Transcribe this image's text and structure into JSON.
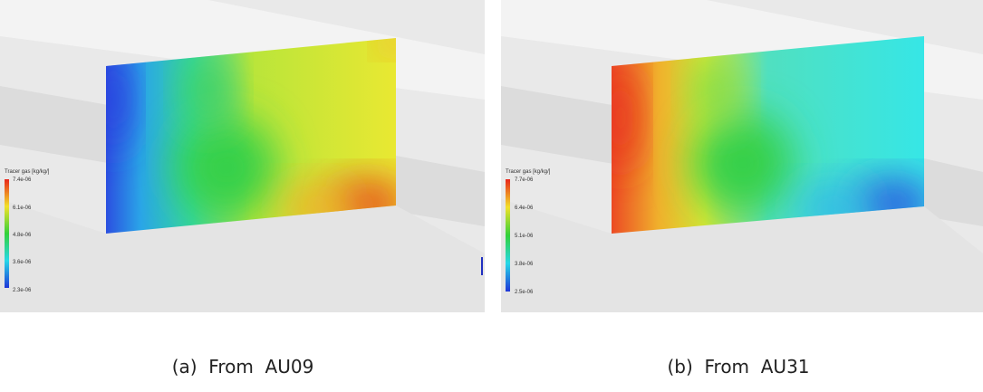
{
  "panels": [
    {
      "caption": "(a)  From  AU09",
      "colorbar": {
        "title": "Tracer gas [kg/kg/]",
        "ticks": [
          "7.4e-06",
          "6.1e-06",
          "4.8e-06",
          "3.6e-06",
          "2.3e-06"
        ]
      }
    },
    {
      "caption": "(b)  From  AU31",
      "colorbar": {
        "title": "Tracer gas [kg/kg/]",
        "ticks": [
          "7.7e-06",
          "6.4e-06",
          "5.1e-06",
          "3.8e-06",
          "2.5e-06"
        ]
      }
    }
  ]
}
